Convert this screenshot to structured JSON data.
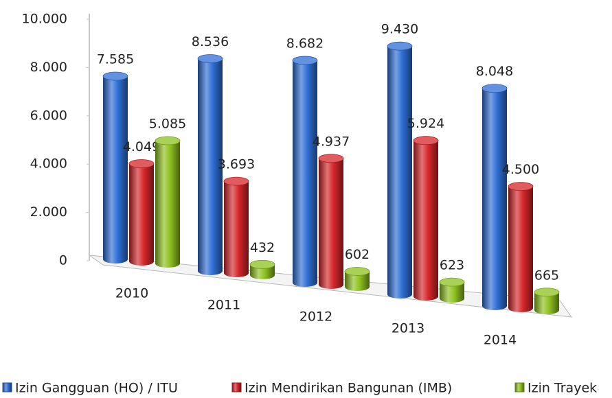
{
  "chart_data": {
    "type": "bar3d",
    "categories": [
      "2010",
      "2011",
      "2012",
      "2013",
      "2014"
    ],
    "series": [
      {
        "name": "Izin Gangguan (HO) / ITU",
        "color": "#2f6fd6",
        "values": [
          7585,
          8536,
          8682,
          9430,
          8048
        ],
        "value_labels": [
          "7.585",
          "8.536",
          "8.682",
          "9.430",
          "8.048"
        ]
      },
      {
        "name": "Izin Mendirikan Bangunan (IMB)",
        "color": "#d6262a",
        "values": [
          4049,
          3693,
          4937,
          5924,
          4500
        ],
        "value_labels": [
          "4.049",
          "3.693",
          "4.937",
          "5.924",
          "4.500"
        ]
      },
      {
        "name": "Izin Trayek",
        "color": "#8ec21f",
        "values": [
          5085,
          432,
          602,
          623,
          665
        ],
        "value_labels": [
          "5.085",
          "432",
          "602",
          "623",
          "665"
        ]
      }
    ],
    "ylim": [
      0,
      10000
    ],
    "yticks": [
      0,
      {
        "value": 2000,
        "label": "2.000"
      },
      {
        "value": 4000,
        "label": "4.000"
      },
      {
        "value": 6000,
        "label": "6.000"
      },
      {
        "value": 8000,
        "label": "8.000"
      },
      {
        "value": 10000,
        "label": "10.000"
      }
    ],
    "legend": "bottom"
  }
}
